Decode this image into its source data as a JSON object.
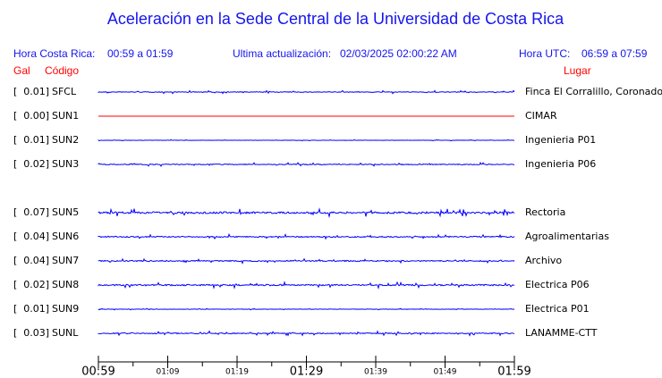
{
  "header": {
    "title": "Aceleración en la Sede Central de la Universidad de Costa Rica",
    "local_label": "Hora Costa Rica:",
    "local_range": "00:59 a 01:59",
    "update_label": "Ultima actualización:",
    "update_time": "02/03/2025 02:00:22 AM",
    "utc_label": "Hora UTC:",
    "utc_range": "06:59 a 07:59",
    "gal_heading": "Gal",
    "code_heading": "Código",
    "place_heading": "Lugar"
  },
  "stations": [
    {
      "gal": "[  0.01]",
      "code": "SFCL",
      "place": "Finca El Corralillo, Coronado",
      "color": "#0000ff"
    },
    {
      "gal": "[  0.00]",
      "code": "SUN1",
      "place": "CIMAR",
      "color": "#ff0000"
    },
    {
      "gal": "[  0.01]",
      "code": "SUN2",
      "place": "Ingenieria P01",
      "color": "#0000ff"
    },
    {
      "gal": "[  0.02]",
      "code": "SUN3",
      "place": "Ingenieria P06",
      "color": "#0000ff"
    },
    {
      "gal": "[  0.07]",
      "code": "SUN5",
      "place": "Rectoria",
      "color": "#0000ff"
    },
    {
      "gal": "[  0.04]",
      "code": "SUN6",
      "place": "Agroalimentarias",
      "color": "#0000ff"
    },
    {
      "gal": "[  0.04]",
      "code": "SUN7",
      "place": "Archivo",
      "color": "#0000ff"
    },
    {
      "gal": "[  0.02]",
      "code": "SUN8",
      "place": "Electrica P06",
      "color": "#0000ff"
    },
    {
      "gal": "[  0.01]",
      "code": "SUN9",
      "place": "Electrica P01",
      "color": "#0000ff"
    },
    {
      "gal": "[  0.03]",
      "code": "SUNL",
      "place": "LANAMME-CTT",
      "color": "#0000ff"
    }
  ],
  "time_axis": [
    "00:59",
    "01:09",
    "01:19",
    "01:29",
    "01:39",
    "01:49",
    "01:59"
  ]
}
